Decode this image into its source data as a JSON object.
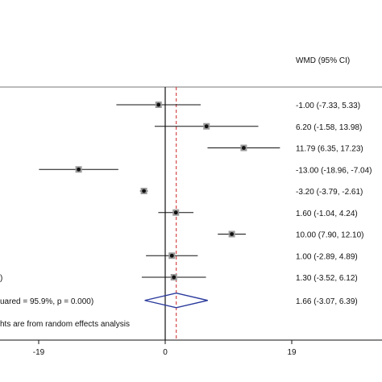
{
  "chart_data": {
    "type": "forest",
    "column_header": "WMD (95% CI)",
    "x_axis": {
      "ticks": [
        -19,
        0,
        19
      ],
      "tick_labels": [
        "-19",
        "0",
        "19"
      ],
      "no_effect_line": 0,
      "overall_line": 1.66,
      "xlim": [
        -24.9,
        29.9
      ]
    },
    "studies": [
      {
        "estimate": -1.0,
        "lower": -7.33,
        "upper": 5.33,
        "label": "-1.00 (-7.33, 5.33)"
      },
      {
        "estimate": 6.2,
        "lower": -1.58,
        "upper": 13.98,
        "label": "6.20 (-1.58, 13.98)"
      },
      {
        "estimate": 11.79,
        "lower": 6.35,
        "upper": 17.23,
        "label": "11.79 (6.35, 17.23)"
      },
      {
        "estimate": -13.0,
        "lower": -18.96,
        "upper": -7.04,
        "label": "-13.00 (-18.96, -7.04)"
      },
      {
        "estimate": -3.2,
        "lower": -3.79,
        "upper": -2.61,
        "label": "-3.20 (-3.79, -2.61)"
      },
      {
        "estimate": 1.6,
        "lower": -1.04,
        "upper": 4.24,
        "label": "1.60 (-1.04, 4.24)"
      },
      {
        "estimate": 10.0,
        "lower": 7.9,
        "upper": 12.1,
        "label": "10.00 (7.90, 12.10)"
      },
      {
        "estimate": 1.0,
        "lower": -2.89,
        "upper": 4.89,
        "label": "1.00 (-2.89, 4.89)"
      },
      {
        "estimate": 1.3,
        "lower": -3.52,
        "upper": 6.12,
        "label": "1.30 (-3.52, 6.12)"
      }
    ],
    "overall": {
      "estimate": 1.66,
      "lower": -3.07,
      "upper": 6.39,
      "label": "1.66 (-3.07, 6.39)"
    },
    "left_fragments": [
      ")",
      "uared = 95.9%, p = 0.000)",
      "hts are from random effects analysis"
    ]
  }
}
